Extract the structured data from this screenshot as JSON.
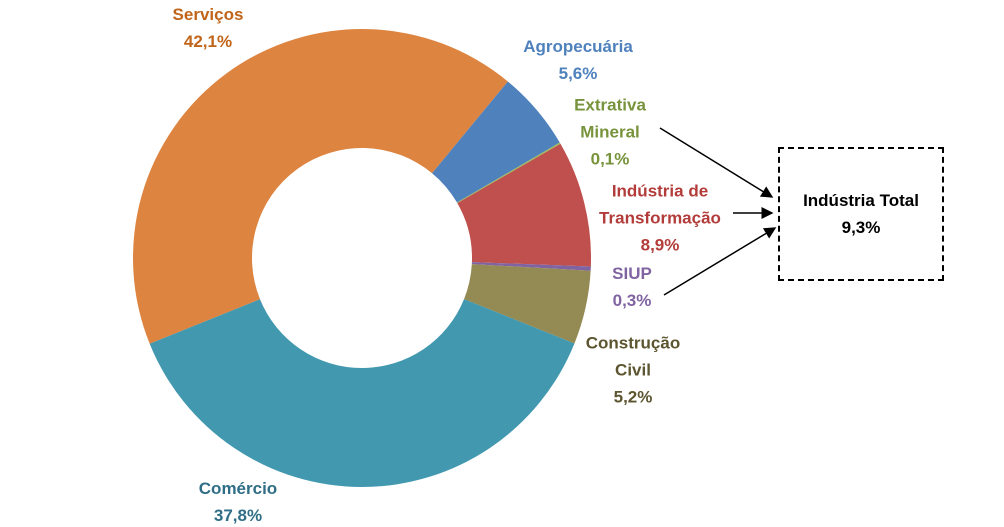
{
  "chart_data": {
    "type": "pie",
    "donut": true,
    "categories": [
      "Serviços",
      "Agropecuária",
      "Extrativa Mineral",
      "Indústria de Transformação",
      "SIUP",
      "Construção Civil",
      "Comércio"
    ],
    "values": [
      42.1,
      5.6,
      0.1,
      8.9,
      0.3,
      5.2,
      37.8
    ],
    "value_labels": [
      "42,1%",
      "5,6%",
      "0,1%",
      "8,9%",
      "0,3%",
      "5,2%",
      "37,8%"
    ],
    "colors": [
      "#dd8440",
      "#4f81bd",
      "#9bbb59",
      "#c0504d",
      "#8064a2",
      "#948a54",
      "#4198af"
    ],
    "label_colors": [
      "#c0651a",
      "#4f81bd",
      "#77933c",
      "#b23c3a",
      "#8064a2",
      "#5c5530",
      "#2f6e86"
    ],
    "annotation": {
      "label": "Indústria Total",
      "value": 9.3,
      "value_label": "9,3%"
    }
  }
}
